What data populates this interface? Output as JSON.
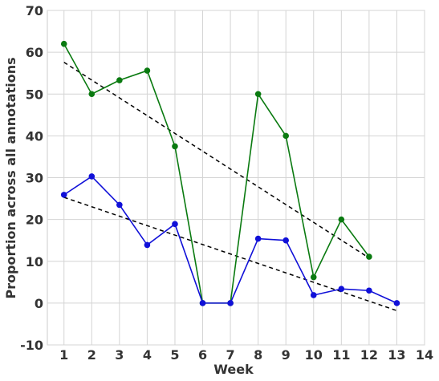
{
  "chart_data": {
    "type": "line",
    "title": "",
    "xlabel": "Week",
    "ylabel": "Proportion across all annotations",
    "xlim": [
      0.4,
      14
    ],
    "ylim": [
      -10,
      70
    ],
    "xticks": [
      1,
      2,
      3,
      4,
      5,
      6,
      7,
      8,
      9,
      10,
      11,
      12,
      13,
      14
    ],
    "yticks": [
      -10,
      0,
      10,
      20,
      30,
      40,
      50,
      60,
      70
    ],
    "grid": true,
    "legend": "none",
    "series": [
      {
        "color": "#0a7a10",
        "marker": "circle",
        "points": [
          {
            "x": 1,
            "y": 62
          },
          {
            "x": 2,
            "y": 50
          },
          {
            "x": 3,
            "y": 53.3
          },
          {
            "x": 4,
            "y": 55.6
          },
          {
            "x": 5,
            "y": 37.5
          },
          {
            "x": 6,
            "y": 0
          },
          {
            "x": 7,
            "y": 0
          },
          {
            "x": 8,
            "y": 50
          },
          {
            "x": 9,
            "y": 40
          },
          {
            "x": 10,
            "y": 6.2
          },
          {
            "x": 11,
            "y": 20
          },
          {
            "x": 12,
            "y": 11.1
          }
        ]
      },
      {
        "color": "#1010d8",
        "marker": "circle",
        "points": [
          {
            "x": 1,
            "y": 25.9
          },
          {
            "x": 2,
            "y": 30.3
          },
          {
            "x": 3,
            "y": 23.5
          },
          {
            "x": 4,
            "y": 13.9
          },
          {
            "x": 5,
            "y": 18.9
          },
          {
            "x": 6,
            "y": 0
          },
          {
            "x": 7,
            "y": 0
          },
          {
            "x": 8,
            "y": 15.4
          },
          {
            "x": 9,
            "y": 15
          },
          {
            "x": 10,
            "y": 1.9
          },
          {
            "x": 11,
            "y": 3.4
          },
          {
            "x": 12,
            "y": 3
          },
          {
            "x": 13,
            "y": 0
          }
        ]
      }
    ],
    "trendlines": [
      {
        "style": "dashed",
        "color": "#000000",
        "from": {
          "x": 1,
          "y": 57.6
        },
        "to": {
          "x": 12,
          "y": 10.8
        }
      },
      {
        "style": "dashed",
        "color": "#000000",
        "from": {
          "x": 1,
          "y": 25.3
        },
        "to": {
          "x": 13,
          "y": -1.8
        }
      }
    ]
  }
}
